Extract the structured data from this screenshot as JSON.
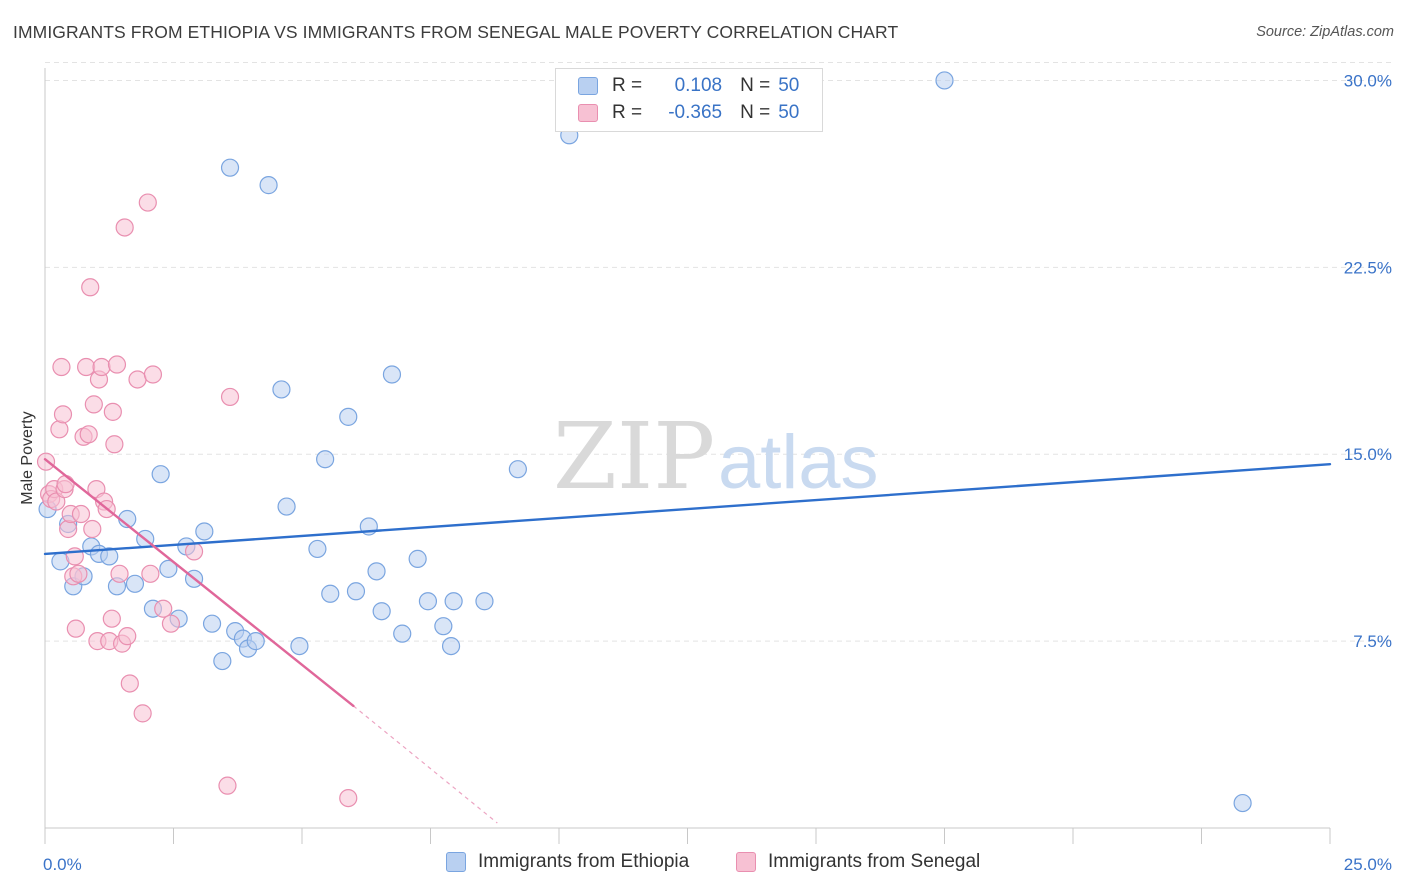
{
  "title": "IMMIGRANTS FROM ETHIOPIA VS IMMIGRANTS FROM SENEGAL MALE POVERTY CORRELATION CHART",
  "source": "Source: ZipAtlas.com",
  "watermark": {
    "zip": "ZIP",
    "atlas": "atlas"
  },
  "legend": {
    "rows": [
      {
        "r_label": "R =",
        "r_value": "0.108",
        "n_label": "N =",
        "n_value": "50"
      },
      {
        "r_label": "R =",
        "r_value": "-0.365",
        "n_label": "N =",
        "n_value": "50"
      }
    ]
  },
  "colors": {
    "ethiopia_fill": "#b9d0f1",
    "ethiopia_stroke": "#7aa5e0",
    "ethiopia_line": "#2e6fcc",
    "senegal_fill": "#f7c1d3",
    "senegal_stroke": "#e98fb0",
    "senegal_line": "#e0679a",
    "axis_label": "#3a73c8",
    "grid": "#e3e3e3"
  },
  "chart_data": {
    "type": "scatter",
    "title": "IMMIGRANTS FROM ETHIOPIA VS IMMIGRANTS FROM SENEGAL MALE POVERTY CORRELATION CHART",
    "xlabel": "",
    "ylabel": "Male Poverty",
    "xlim": [
      0,
      25
    ],
    "ylim": [
      0,
      30.5
    ],
    "x_tick_labels": [
      "0.0%",
      "25.0%"
    ],
    "y_ticks": [
      7.5,
      15.0,
      22.5,
      30.0
    ],
    "y_tick_labels": [
      "7.5%",
      "15.0%",
      "22.5%",
      "30.0%"
    ],
    "legend_position": "top-center",
    "grid": true,
    "series": [
      {
        "name": "Immigrants from Ethiopia",
        "r": 0.108,
        "n": 50,
        "trend": {
          "x": [
            0,
            25
          ],
          "y": [
            11.0,
            14.6
          ],
          "style": "solid"
        },
        "points": [
          [
            0.05,
            12.8
          ],
          [
            0.3,
            10.7
          ],
          [
            0.45,
            12.2
          ],
          [
            0.55,
            9.7
          ],
          [
            0.75,
            10.1
          ],
          [
            0.9,
            11.3
          ],
          [
            1.05,
            11.0
          ],
          [
            1.25,
            10.9
          ],
          [
            1.4,
            9.7
          ],
          [
            1.6,
            12.4
          ],
          [
            1.75,
            9.8
          ],
          [
            1.95,
            11.6
          ],
          [
            2.1,
            8.8
          ],
          [
            2.25,
            14.2
          ],
          [
            2.4,
            10.4
          ],
          [
            2.6,
            8.4
          ],
          [
            2.75,
            11.3
          ],
          [
            2.9,
            10.0
          ],
          [
            3.1,
            11.9
          ],
          [
            3.25,
            8.2
          ],
          [
            3.45,
            6.7
          ],
          [
            3.6,
            26.5
          ],
          [
            3.7,
            7.9
          ],
          [
            3.85,
            7.6
          ],
          [
            3.95,
            7.2
          ],
          [
            4.1,
            7.5
          ],
          [
            4.35,
            25.8
          ],
          [
            4.6,
            17.6
          ],
          [
            4.7,
            12.9
          ],
          [
            4.95,
            7.3
          ],
          [
            5.3,
            11.2
          ],
          [
            5.45,
            14.8
          ],
          [
            5.55,
            9.4
          ],
          [
            5.9,
            16.5
          ],
          [
            6.05,
            9.5
          ],
          [
            6.3,
            12.1
          ],
          [
            6.45,
            10.3
          ],
          [
            6.55,
            8.7
          ],
          [
            6.75,
            18.2
          ],
          [
            6.95,
            7.8
          ],
          [
            7.25,
            10.8
          ],
          [
            7.45,
            9.1
          ],
          [
            7.75,
            8.1
          ],
          [
            7.9,
            7.3
          ],
          [
            7.95,
            9.1
          ],
          [
            8.55,
            9.1
          ],
          [
            9.2,
            14.4
          ],
          [
            10.2,
            27.8
          ],
          [
            17.5,
            30.0
          ],
          [
            23.3,
            1.0
          ]
        ]
      },
      {
        "name": "Immigrants from Senegal",
        "r": -0.365,
        "n": 50,
        "trend": {
          "x": [
            0,
            6.0
          ],
          "y": [
            14.8,
            4.9
          ],
          "style": "solid",
          "extension": {
            "x": [
              6.0,
              8.8
            ],
            "y": [
              4.9,
              0.2
            ],
            "style": "dashed"
          }
        },
        "points": [
          [
            0.02,
            14.7
          ],
          [
            0.08,
            13.4
          ],
          [
            0.12,
            13.2
          ],
          [
            0.18,
            13.6
          ],
          [
            0.22,
            13.1
          ],
          [
            0.28,
            16.0
          ],
          [
            0.32,
            18.5
          ],
          [
            0.35,
            16.6
          ],
          [
            0.38,
            13.6
          ],
          [
            0.4,
            13.8
          ],
          [
            0.45,
            12.0
          ],
          [
            0.5,
            12.6
          ],
          [
            0.55,
            10.1
          ],
          [
            0.58,
            10.9
          ],
          [
            0.6,
            8.0
          ],
          [
            0.65,
            10.2
          ],
          [
            0.7,
            12.6
          ],
          [
            0.75,
            15.7
          ],
          [
            0.8,
            18.5
          ],
          [
            0.85,
            15.8
          ],
          [
            0.88,
            21.7
          ],
          [
            0.92,
            12.0
          ],
          [
            0.95,
            17.0
          ],
          [
            1.0,
            13.6
          ],
          [
            1.02,
            7.5
          ],
          [
            1.05,
            18.0
          ],
          [
            1.1,
            18.5
          ],
          [
            1.15,
            13.1
          ],
          [
            1.2,
            12.8
          ],
          [
            1.25,
            7.5
          ],
          [
            1.3,
            8.4
          ],
          [
            1.32,
            16.7
          ],
          [
            1.35,
            15.4
          ],
          [
            1.4,
            18.6
          ],
          [
            1.45,
            10.2
          ],
          [
            1.5,
            7.4
          ],
          [
            1.55,
            24.1
          ],
          [
            1.6,
            7.7
          ],
          [
            1.65,
            5.8
          ],
          [
            1.8,
            18.0
          ],
          [
            1.9,
            4.6
          ],
          [
            2.0,
            25.1
          ],
          [
            2.05,
            10.2
          ],
          [
            2.1,
            18.2
          ],
          [
            2.3,
            8.8
          ],
          [
            2.45,
            8.2
          ],
          [
            2.9,
            11.1
          ],
          [
            3.6,
            17.3
          ],
          [
            3.55,
            1.7
          ],
          [
            5.9,
            1.2
          ]
        ]
      }
    ]
  },
  "bottom_legend": [
    {
      "label": "Immigrants from Ethiopia"
    },
    {
      "label": "Immigrants from Senegal"
    }
  ]
}
